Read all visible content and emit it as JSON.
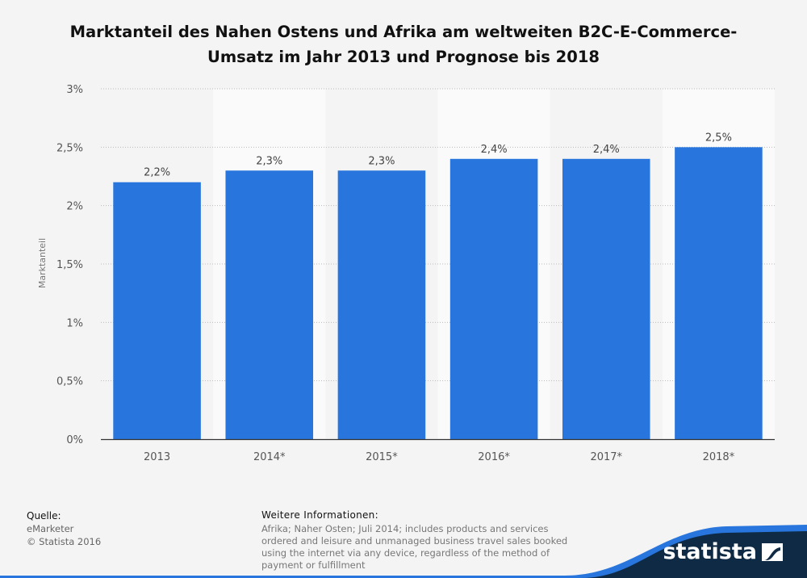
{
  "chart_data": {
    "type": "bar",
    "title_line1": "Marktanteil des Nahen Ostens und Afrika am weltweiten B2C-E-Commerce-",
    "title_line2": "Umsatz im Jahr 2013 und Prognose bis 2018",
    "categories": [
      "2013",
      "2014*",
      "2015*",
      "2016*",
      "2017*",
      "2018*"
    ],
    "values": [
      2.2,
      2.3,
      2.3,
      2.4,
      2.4,
      2.5
    ],
    "value_labels": [
      "2,2%",
      "2,3%",
      "2,3%",
      "2,4%",
      "2,4%",
      "2,5%"
    ],
    "ylabel": "Marktanteil",
    "ylim": [
      0,
      3
    ],
    "yticks": [
      0,
      0.5,
      1,
      1.5,
      2,
      2.5,
      3
    ],
    "ytick_labels": [
      "0%",
      "0,5%",
      "1%",
      "1,5%",
      "2%",
      "2,5%",
      "3%"
    ],
    "grid": true,
    "colors": {
      "bar": "#2876dd",
      "band": "#fafafa"
    }
  },
  "footer": {
    "source_heading": "Quelle:",
    "source_name": "eMarketer",
    "copyright": "© Statista 2016",
    "info_heading": "Weitere Informationen:",
    "info_text": "Afrika; Naher Osten; Juli 2014; includes products and services ordered and leisure and unmanaged business travel sales booked using the internet via any device, regardless of the method of payment or fulfillment"
  },
  "brand": {
    "name": "statista",
    "colors": {
      "dark": "#0f2a44",
      "accent": "#2876dd"
    }
  }
}
